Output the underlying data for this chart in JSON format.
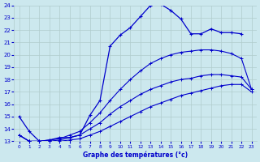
{
  "xlabel": "Graphe des températures (°c)",
  "xlim": [
    -0.5,
    23.5
  ],
  "ylim": [
    13,
    24
  ],
  "yticks": [
    13,
    14,
    15,
    16,
    17,
    18,
    19,
    20,
    21,
    22,
    23,
    24
  ],
  "xticks": [
    0,
    1,
    2,
    3,
    4,
    5,
    6,
    7,
    8,
    9,
    10,
    11,
    12,
    13,
    14,
    15,
    16,
    17,
    18,
    19,
    20,
    21,
    22,
    23
  ],
  "bg_color": "#cce8ee",
  "grid_color": "#b0cccc",
  "line_color": "#0000cc",
  "line1_x": [
    0,
    1,
    2,
    3,
    4,
    5,
    6,
    7,
    8,
    9,
    10,
    11,
    12,
    13,
    14,
    15,
    16,
    17,
    18,
    19,
    20,
    21,
    22
  ],
  "line1_y": [
    15.0,
    13.8,
    13.0,
    13.1,
    13.3,
    13.3,
    13.5,
    15.1,
    16.3,
    20.7,
    21.6,
    22.2,
    23.1,
    24.0,
    24.1,
    23.6,
    22.9,
    21.7,
    21.7,
    22.1,
    21.8,
    21.8,
    21.7
  ],
  "line2_x": [
    0,
    1,
    2,
    3,
    4,
    5,
    6,
    7,
    8,
    9,
    10,
    11,
    12,
    13,
    14,
    15,
    16,
    17,
    18,
    19,
    20,
    21,
    22,
    23
  ],
  "line2_y": [
    13.5,
    13.0,
    13.0,
    13.0,
    13.0,
    13.1,
    13.2,
    13.5,
    13.8,
    14.2,
    14.6,
    15.0,
    15.4,
    15.8,
    16.1,
    16.4,
    16.7,
    16.9,
    17.1,
    17.3,
    17.5,
    17.6,
    17.6,
    17.0
  ],
  "line3_x": [
    0,
    1,
    2,
    3,
    4,
    5,
    6,
    7,
    8,
    9,
    10,
    11,
    12,
    13,
    14,
    15,
    16,
    17,
    18,
    19,
    20,
    21,
    22,
    23
  ],
  "line3_y": [
    13.5,
    13.0,
    13.0,
    13.0,
    13.1,
    13.3,
    13.5,
    14.0,
    14.5,
    15.2,
    15.8,
    16.3,
    16.8,
    17.2,
    17.5,
    17.8,
    18.0,
    18.1,
    18.3,
    18.4,
    18.4,
    18.3,
    18.2,
    17.2
  ],
  "line4_x": [
    0,
    1,
    2,
    3,
    4,
    5,
    6,
    7,
    8,
    9,
    10,
    11,
    12,
    13,
    14,
    15,
    16,
    17,
    18,
    19,
    20,
    21,
    22,
    23
  ],
  "line4_y": [
    13.5,
    13.0,
    13.0,
    13.1,
    13.2,
    13.5,
    13.8,
    14.5,
    15.3,
    16.3,
    17.2,
    18.0,
    18.7,
    19.3,
    19.7,
    20.0,
    20.2,
    20.3,
    20.4,
    20.4,
    20.3,
    20.1,
    19.7,
    17.2
  ]
}
